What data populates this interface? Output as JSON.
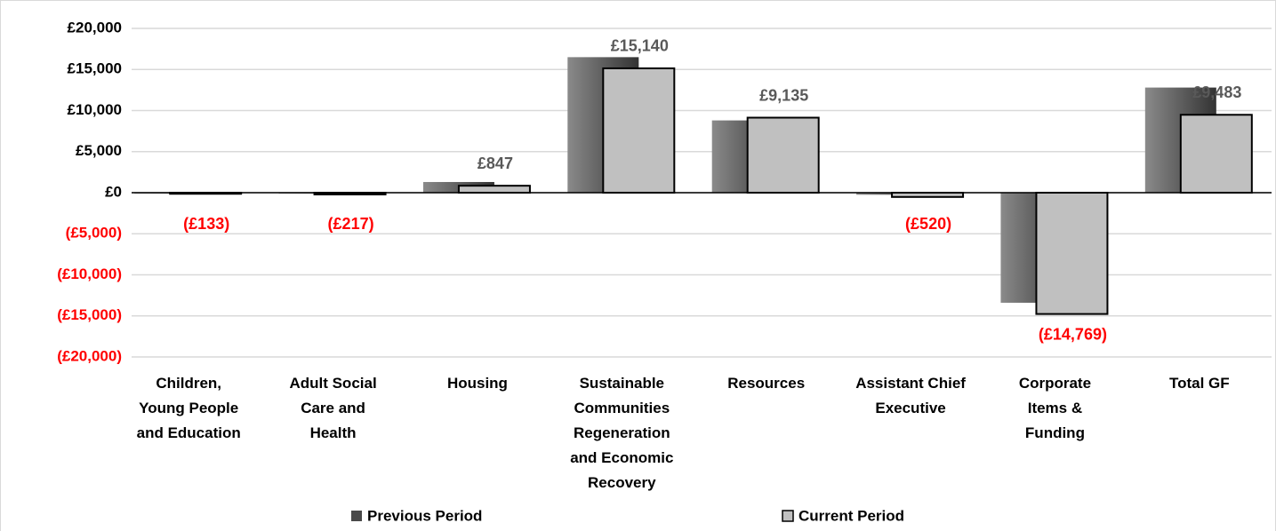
{
  "chart_data": {
    "type": "bar",
    "categories": [
      "Children,\nYoung People\nand Education",
      "Adult Social\nCare and\nHealth",
      "Housing",
      "Sustainable\nCommunities\nRegeneration\nand Economic\nRecovery",
      "Resources",
      "Assistant Chief\nExecutive",
      "Corporate\nItems &\nFunding",
      "Total GF"
    ],
    "series": [
      {
        "name": "Previous Period",
        "color": "#4a4a4a",
        "values": [
          -50,
          -100,
          1300,
          16500,
          8800,
          -250,
          -13400,
          12800
        ]
      },
      {
        "name": "Current Period",
        "color": "#c0c0c0",
        "values": [
          -133,
          -217,
          847,
          15140,
          9135,
          -520,
          -14769,
          9483
        ],
        "value_labels": [
          "(£133)",
          "(£217)",
          "£847",
          "£15,140",
          "£9,135",
          "(£520)",
          "(£14,769)",
          "£9,483"
        ]
      }
    ],
    "ylim": [
      -20000,
      20000
    ],
    "yticks": [
      {
        "value": -20000,
        "label": "(£20,000)"
      },
      {
        "value": -15000,
        "label": "(£15,000)"
      },
      {
        "value": -10000,
        "label": "(£10,000)"
      },
      {
        "value": -5000,
        "label": "(£5,000)"
      },
      {
        "value": 0,
        "label": "£0"
      },
      {
        "value": 5000,
        "label": "£5,000"
      },
      {
        "value": 10000,
        "label": "£10,000"
      },
      {
        "value": 15000,
        "label": "£15,000"
      },
      {
        "value": 20000,
        "label": "£20,000"
      }
    ],
    "grid": true,
    "negative_label_color": "#ff0000",
    "legend": "bottom"
  }
}
